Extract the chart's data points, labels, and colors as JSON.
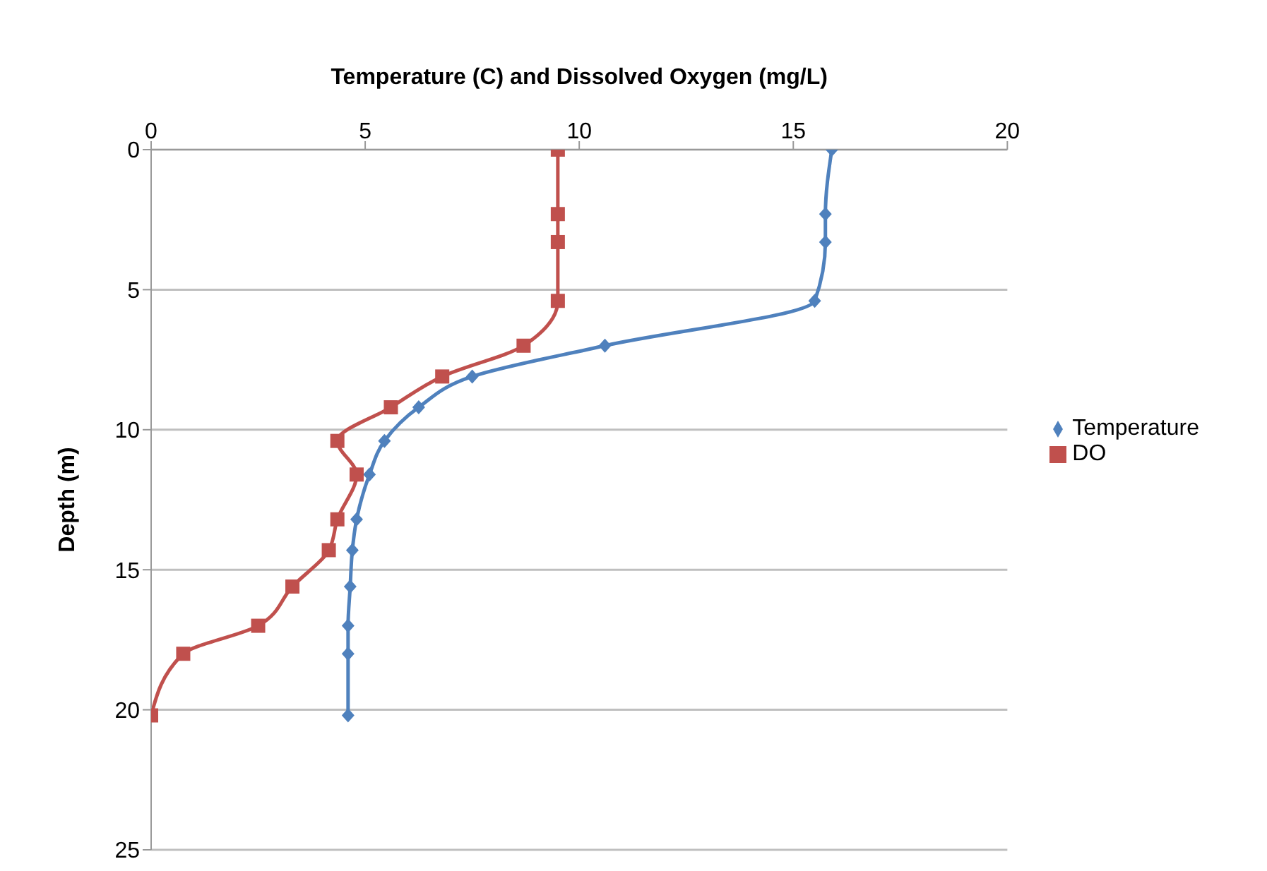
{
  "chart_data": {
    "type": "line",
    "orientation": "horizontal",
    "xlabel": "Temperature (C) and Dissolved Oxygen (mg/L)",
    "ylabel": "Depth (m)",
    "x": [
      0,
      2.3,
      3.3,
      5.4,
      7.0,
      8.1,
      9.2,
      10.4,
      11.6,
      13.2,
      14.3,
      15.6,
      17.0,
      18.0,
      20.2
    ],
    "series": [
      {
        "name": "Temperature",
        "color": "#4f81bd",
        "marker": "diamond",
        "values": [
          15.9,
          15.75,
          15.75,
          15.5,
          10.6,
          7.5,
          6.25,
          5.45,
          5.1,
          4.8,
          4.7,
          4.65,
          4.6,
          4.6,
          4.6
        ]
      },
      {
        "name": "DO",
        "color": "#c0504d",
        "marker": "square",
        "values": [
          9.5,
          9.5,
          9.5,
          9.5,
          8.7,
          6.8,
          5.6,
          4.35,
          4.8,
          4.35,
          4.15,
          3.3,
          2.5,
          0.75,
          0
        ]
      }
    ],
    "xlim": [
      0,
      20
    ],
    "xticks": [
      0,
      5,
      10,
      15,
      20
    ],
    "ylim": [
      25,
      0
    ],
    "yticks": [
      0,
      5,
      10,
      15,
      20,
      25
    ],
    "grid": "y",
    "legend": "right",
    "line_style": "solid"
  }
}
